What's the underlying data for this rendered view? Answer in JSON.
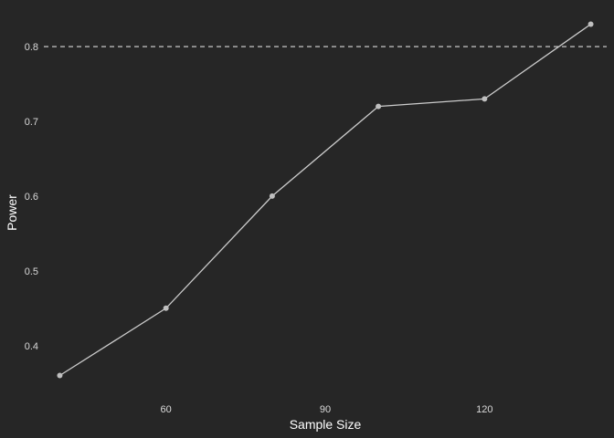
{
  "chart_data": {
    "type": "line",
    "title": "",
    "xlabel": "Sample Size",
    "ylabel": "Power",
    "x": [
      40,
      60,
      80,
      100,
      120,
      140
    ],
    "series": [
      {
        "values": [
          0.36,
          0.45,
          0.6,
          0.72,
          0.73,
          0.83
        ]
      }
    ],
    "xticks": [
      60,
      90,
      120
    ],
    "yticks": [
      0.4,
      0.5,
      0.6,
      0.7,
      0.8
    ],
    "xlim": [
      37,
      143
    ],
    "ylim": [
      0.335,
      0.855
    ],
    "reference_line": {
      "y": 0.8,
      "style": "dashed"
    },
    "grid": false,
    "colors": {
      "background": "#262626",
      "line": "#cccccc",
      "points": "#bfbfbf",
      "reference": "#d9d9d9"
    }
  }
}
